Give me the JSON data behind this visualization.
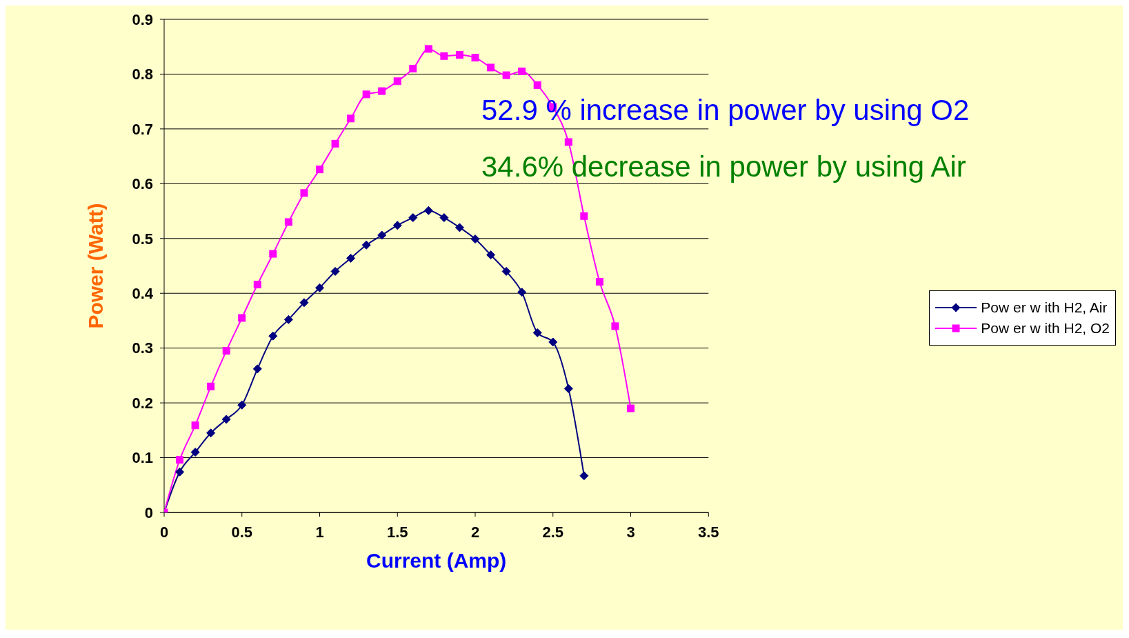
{
  "chart_data": {
    "type": "line",
    "xlabel": "Current (Amp)",
    "ylabel": "Power (Watt)",
    "xlim": [
      0,
      3.5
    ],
    "xticks": [
      0,
      0.5,
      1,
      1.5,
      2,
      2.5,
      3,
      3.5
    ],
    "ylim": [
      0,
      0.9
    ],
    "yticks": [
      0,
      0.1,
      0.2,
      0.3,
      0.4,
      0.5,
      0.6,
      0.7,
      0.8,
      0.9
    ],
    "grid": "y",
    "legend": "right",
    "annotations": [
      "52.9 % increase in power by using O2",
      "34.6% decrease in power by using Air"
    ],
    "series": [
      {
        "name": "Pow er w ith H2, Air",
        "color": "#000080",
        "marker": "diamond",
        "x": [
          0,
          0.1,
          0.2,
          0.3,
          0.4,
          0.5,
          0.6,
          0.7,
          0.8,
          0.9,
          1.0,
          1.1,
          1.2,
          1.3,
          1.4,
          1.5,
          1.6,
          1.7,
          1.8,
          1.9,
          2.0,
          2.1,
          2.2,
          2.3,
          2.4,
          2.5,
          2.6,
          2.7
        ],
        "values": [
          0,
          0.074,
          0.11,
          0.145,
          0.17,
          0.196,
          0.262,
          0.322,
          0.352,
          0.383,
          0.41,
          0.44,
          0.464,
          0.488,
          0.506,
          0.524,
          0.538,
          0.551,
          0.538,
          0.52,
          0.499,
          0.47,
          0.44,
          0.402,
          0.328,
          0.311,
          0.226,
          0.067
        ]
      },
      {
        "name": "Pow er w ith H2, O2",
        "color": "#ff00ff",
        "marker": "square",
        "x": [
          0,
          0.1,
          0.2,
          0.3,
          0.4,
          0.5,
          0.6,
          0.7,
          0.8,
          0.9,
          1.0,
          1.1,
          1.2,
          1.3,
          1.4,
          1.5,
          1.6,
          1.7,
          1.8,
          1.9,
          2.0,
          2.1,
          2.2,
          2.3,
          2.4,
          2.5,
          2.6,
          2.7,
          2.8,
          2.9,
          3.0
        ],
        "values": [
          0,
          0.096,
          0.159,
          0.23,
          0.295,
          0.355,
          0.416,
          0.472,
          0.53,
          0.583,
          0.626,
          0.673,
          0.719,
          0.763,
          0.769,
          0.787,
          0.81,
          0.846,
          0.833,
          0.835,
          0.83,
          0.812,
          0.798,
          0.805,
          0.78,
          0.74,
          0.676,
          0.541,
          0.421,
          0.34,
          0.19
        ]
      }
    ]
  }
}
